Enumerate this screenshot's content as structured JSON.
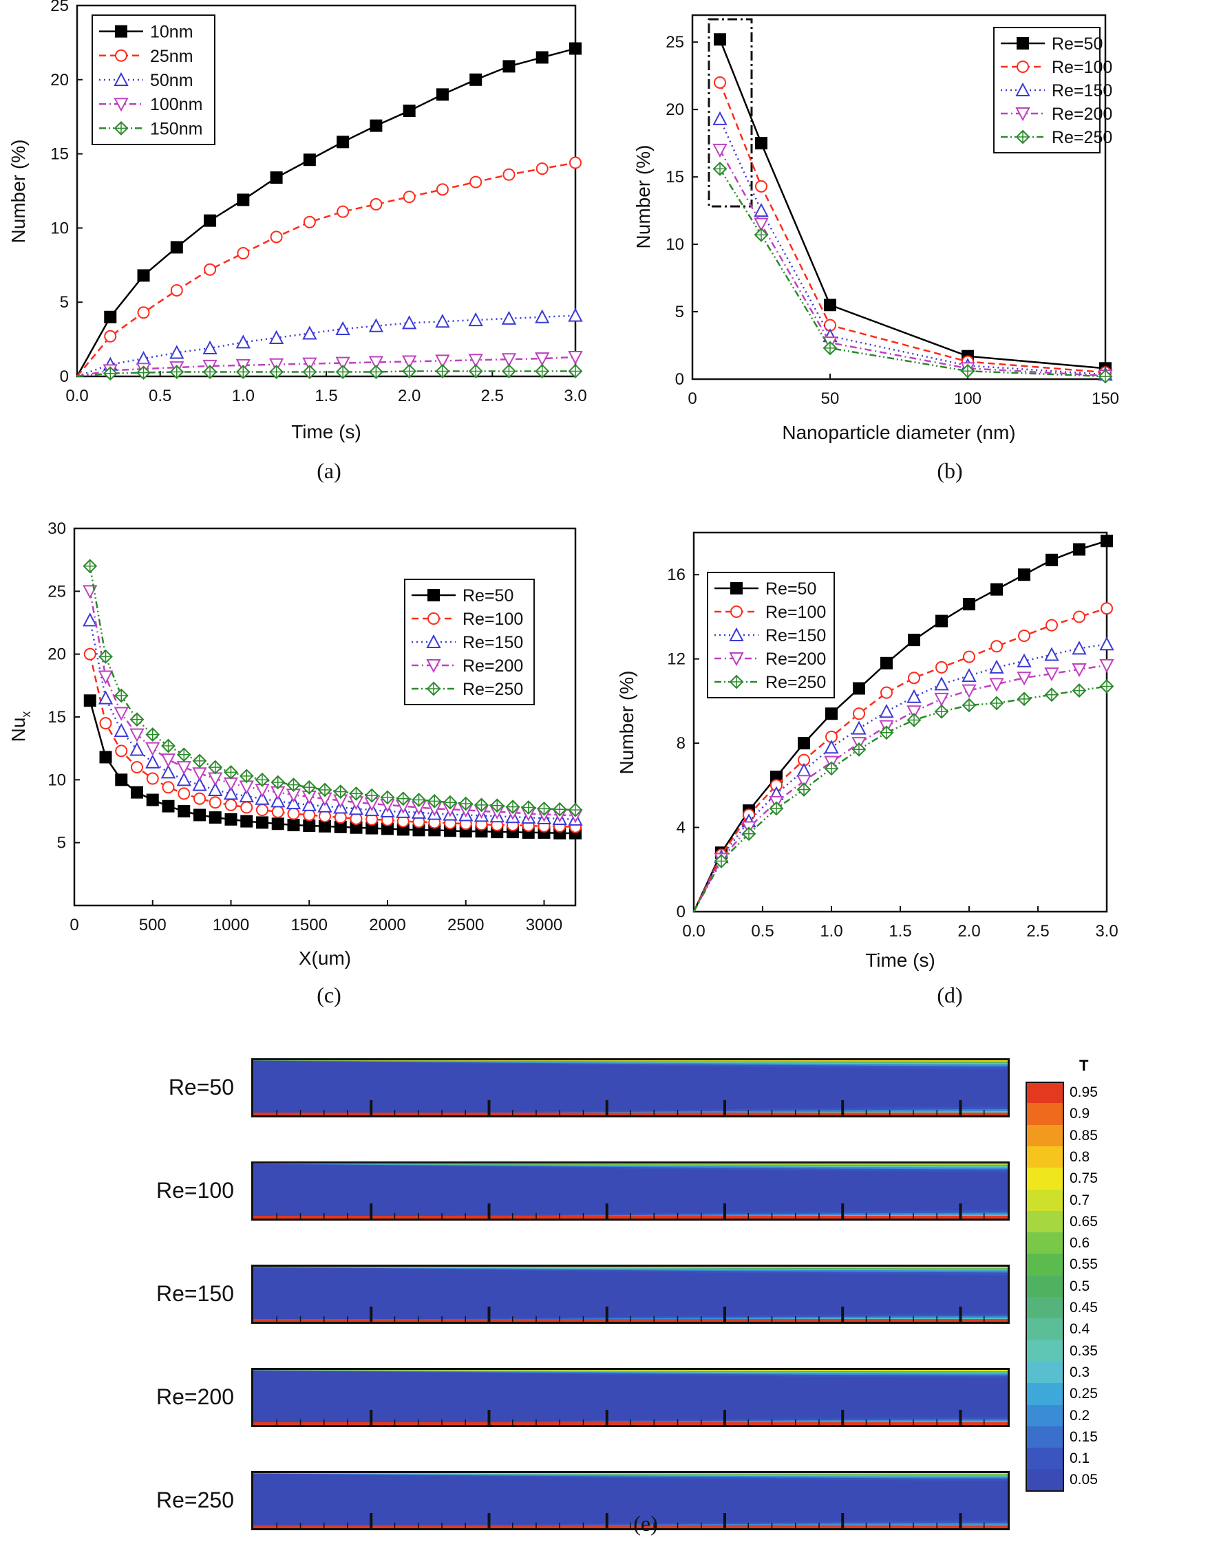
{
  "captions": {
    "a": "(a)",
    "b": "(b)",
    "c": "(c)",
    "d": "(d)",
    "e": "(e)"
  },
  "colors": {
    "s1": "#000000",
    "s2": "#ff2a1a",
    "s3": "#3a3ad6",
    "s4": "#c040c0",
    "s5": "#2a8a2a"
  },
  "chart_data": [
    {
      "id": "a",
      "type": "line",
      "title": "",
      "xlabel": "Time (s)",
      "ylabel": "Number (%)",
      "xlim": [
        0,
        3.0
      ],
      "ylim": [
        0,
        25
      ],
      "xticks": [
        "0.0",
        "0.5",
        "1.0",
        "1.5",
        "2.0",
        "2.5",
        "3.0"
      ],
      "xtickvals": [
        0,
        0.5,
        1.0,
        1.5,
        2.0,
        2.5,
        3.0
      ],
      "yticks": [
        "0",
        "5",
        "10",
        "15",
        "20",
        "25"
      ],
      "ytickvals": [
        0,
        5,
        10,
        15,
        20,
        25
      ],
      "x": [
        0,
        0.2,
        0.4,
        0.6,
        0.8,
        1.0,
        1.2,
        1.4,
        1.6,
        1.8,
        2.0,
        2.2,
        2.4,
        2.6,
        2.8,
        3.0
      ],
      "legend": "top-left",
      "series": [
        {
          "name": "10nm",
          "marker": "square",
          "dash": "solid",
          "values": [
            0,
            4.0,
            6.8,
            8.7,
            10.5,
            11.9,
            13.4,
            14.6,
            15.8,
            16.9,
            17.9,
            19.0,
            20.0,
            20.9,
            21.5,
            22.1
          ]
        },
        {
          "name": "25nm",
          "marker": "circle",
          "dash": "dash",
          "values": [
            0,
            2.7,
            4.3,
            5.8,
            7.2,
            8.3,
            9.4,
            10.4,
            11.1,
            11.6,
            12.1,
            12.6,
            13.1,
            13.6,
            14.0,
            14.4
          ]
        },
        {
          "name": "50nm",
          "marker": "triangle",
          "dash": "dot",
          "values": [
            0,
            0.8,
            1.2,
            1.6,
            1.9,
            2.3,
            2.6,
            2.9,
            3.2,
            3.4,
            3.6,
            3.7,
            3.8,
            3.9,
            4.0,
            4.1
          ]
        },
        {
          "name": "100nm",
          "marker": "triangle-down",
          "dash": "dashdot",
          "values": [
            0,
            0.4,
            0.5,
            0.6,
            0.7,
            0.75,
            0.8,
            0.85,
            0.9,
            0.95,
            1.0,
            1.05,
            1.1,
            1.15,
            1.2,
            1.3
          ]
        },
        {
          "name": "150nm",
          "marker": "diamond",
          "dash": "dashdotdot",
          "values": [
            0,
            0.2,
            0.25,
            0.3,
            0.3,
            0.3,
            0.3,
            0.3,
            0.3,
            0.3,
            0.35,
            0.35,
            0.35,
            0.35,
            0.35,
            0.35
          ]
        }
      ]
    },
    {
      "id": "b",
      "type": "line",
      "title": "",
      "xlabel": "Nanoparticle diameter (nm)",
      "ylabel": "Number (%)",
      "xlim": [
        0,
        150
      ],
      "ylim": [
        0,
        27
      ],
      "xticks": [
        "0",
        "50",
        "100",
        "150"
      ],
      "xtickvals": [
        0,
        50,
        100,
        150
      ],
      "yticks": [
        "0",
        "5",
        "10",
        "15",
        "20",
        "25"
      ],
      "ytickvals": [
        0,
        5,
        10,
        15,
        20,
        25
      ],
      "x": [
        10,
        25,
        50,
        100,
        150
      ],
      "legend": "top-right",
      "annotation": "dash-dot box around 10 nm points",
      "series": [
        {
          "name": "Re=50",
          "marker": "square",
          "dash": "solid",
          "values": [
            25.2,
            17.5,
            5.5,
            1.7,
            0.8
          ]
        },
        {
          "name": "Re=100",
          "marker": "circle",
          "dash": "dash",
          "values": [
            22.0,
            14.3,
            4.0,
            1.3,
            0.5
          ]
        },
        {
          "name": "Re=150",
          "marker": "triangle",
          "dash": "dot",
          "values": [
            19.3,
            12.5,
            3.2,
            1.0,
            0.35
          ]
        },
        {
          "name": "Re=200",
          "marker": "triangle-down",
          "dash": "dashdot",
          "values": [
            17.0,
            11.5,
            2.7,
            0.8,
            0.25
          ]
        },
        {
          "name": "Re=250",
          "marker": "diamond",
          "dash": "dashdotdot",
          "values": [
            15.6,
            10.7,
            2.3,
            0.6,
            0.2
          ]
        }
      ]
    },
    {
      "id": "c",
      "type": "line",
      "title": "",
      "xlabel": "X(um)",
      "ylabel": "Nu",
      "ylabel_sub": "x",
      "xlim": [
        0,
        3200
      ],
      "ylim": [
        0,
        30
      ],
      "xticks": [
        "0",
        "500",
        "1000",
        "1500",
        "2000",
        "2500",
        "3000"
      ],
      "xtickvals": [
        0,
        500,
        1000,
        1500,
        2000,
        2500,
        3000
      ],
      "yticks": [
        "5",
        "10",
        "15",
        "20",
        "25",
        "30"
      ],
      "ytickvals": [
        5,
        10,
        15,
        20,
        25,
        30
      ],
      "x": [
        100,
        200,
        300,
        400,
        500,
        600,
        700,
        800,
        900,
        1000,
        1100,
        1200,
        1300,
        1400,
        1500,
        1600,
        1700,
        1800,
        1900,
        2000,
        2100,
        2200,
        2300,
        2400,
        2500,
        2600,
        2700,
        2800,
        2900,
        3000,
        3100,
        3200
      ],
      "legend": "right",
      "series": [
        {
          "name": "Re=50",
          "marker": "square",
          "dash": "solid",
          "values": [
            16.3,
            11.8,
            10.0,
            9.0,
            8.4,
            7.9,
            7.5,
            7.2,
            7.0,
            6.85,
            6.7,
            6.6,
            6.5,
            6.4,
            6.35,
            6.3,
            6.25,
            6.2,
            6.15,
            6.1,
            6.05,
            6.0,
            6.0,
            5.95,
            5.9,
            5.9,
            5.85,
            5.85,
            5.8,
            5.8,
            5.75,
            5.75
          ]
        },
        {
          "name": "Re=100",
          "marker": "circle",
          "dash": "dash",
          "values": [
            20.0,
            14.5,
            12.3,
            11.0,
            10.1,
            9.4,
            8.9,
            8.5,
            8.2,
            8.0,
            7.8,
            7.6,
            7.45,
            7.3,
            7.2,
            7.1,
            7.0,
            6.9,
            6.85,
            6.8,
            6.7,
            6.65,
            6.6,
            6.55,
            6.5,
            6.45,
            6.4,
            6.4,
            6.35,
            6.3,
            6.3,
            6.25
          ]
        },
        {
          "name": "Re=150",
          "marker": "triangle",
          "dash": "dot",
          "values": [
            22.7,
            16.5,
            13.9,
            12.4,
            11.4,
            10.6,
            10.0,
            9.6,
            9.2,
            8.9,
            8.7,
            8.5,
            8.3,
            8.15,
            8.0,
            7.9,
            7.8,
            7.7,
            7.6,
            7.5,
            7.45,
            7.4,
            7.3,
            7.25,
            7.2,
            7.15,
            7.1,
            7.05,
            7.0,
            6.95,
            6.9,
            6.85
          ]
        },
        {
          "name": "Re=200",
          "marker": "triangle-down",
          "dash": "dashdot",
          "values": [
            25.0,
            18.2,
            15.3,
            13.6,
            12.5,
            11.6,
            11.0,
            10.5,
            10.1,
            9.7,
            9.45,
            9.2,
            9.0,
            8.8,
            8.65,
            8.5,
            8.35,
            8.2,
            8.1,
            8.0,
            7.9,
            7.8,
            7.7,
            7.65,
            7.6,
            7.5,
            7.45,
            7.4,
            7.3,
            7.25,
            7.2,
            7.15
          ]
        },
        {
          "name": "Re=250",
          "marker": "diamond",
          "dash": "dashdotdot",
          "values": [
            27.0,
            19.8,
            16.7,
            14.8,
            13.6,
            12.7,
            12.0,
            11.5,
            11.0,
            10.6,
            10.3,
            10.0,
            9.8,
            9.6,
            9.4,
            9.2,
            9.05,
            8.9,
            8.75,
            8.6,
            8.5,
            8.4,
            8.3,
            8.2,
            8.1,
            8.0,
            7.95,
            7.85,
            7.8,
            7.7,
            7.65,
            7.6
          ]
        }
      ]
    },
    {
      "id": "d",
      "type": "line",
      "title": "",
      "xlabel": "Time (s)",
      "ylabel": "Number (%)",
      "xlim": [
        0,
        3.0
      ],
      "ylim": [
        0,
        18
      ],
      "xticks": [
        "0.0",
        "0.5",
        "1.0",
        "1.5",
        "2.0",
        "2.5",
        "3.0"
      ],
      "xtickvals": [
        0,
        0.5,
        1.0,
        1.5,
        2.0,
        2.5,
        3.0
      ],
      "yticks": [
        "0",
        "4",
        "8",
        "12",
        "16"
      ],
      "ytickvals": [
        0,
        4,
        8,
        12,
        16
      ],
      "x": [
        0,
        0.2,
        0.4,
        0.6,
        0.8,
        1.0,
        1.2,
        1.4,
        1.6,
        1.8,
        2.0,
        2.2,
        2.4,
        2.6,
        2.8,
        3.0
      ],
      "legend": "top-left",
      "series": [
        {
          "name": "Re=50",
          "marker": "square",
          "dash": "solid",
          "values": [
            0,
            2.8,
            4.8,
            6.4,
            8.0,
            9.4,
            10.6,
            11.8,
            12.9,
            13.8,
            14.6,
            15.3,
            16.0,
            16.7,
            17.2,
            17.6
          ]
        },
        {
          "name": "Re=100",
          "marker": "circle",
          "dash": "dash",
          "values": [
            0,
            2.7,
            4.6,
            6.0,
            7.2,
            8.3,
            9.4,
            10.4,
            11.1,
            11.6,
            12.1,
            12.6,
            13.1,
            13.6,
            14.0,
            14.4
          ]
        },
        {
          "name": "Re=150",
          "marker": "triangle",
          "dash": "dot",
          "values": [
            0,
            2.6,
            4.3,
            5.6,
            6.7,
            7.8,
            8.7,
            9.5,
            10.2,
            10.8,
            11.2,
            11.6,
            11.9,
            12.2,
            12.5,
            12.7
          ]
        },
        {
          "name": "Re=200",
          "marker": "triangle-down",
          "dash": "dashdot",
          "values": [
            0,
            2.5,
            4.0,
            5.2,
            6.2,
            7.1,
            8.0,
            8.8,
            9.5,
            10.1,
            10.5,
            10.8,
            11.1,
            11.3,
            11.5,
            11.7
          ]
        },
        {
          "name": "Re=250",
          "marker": "diamond",
          "dash": "dashdotdot",
          "values": [
            0,
            2.4,
            3.7,
            4.9,
            5.8,
            6.8,
            7.7,
            8.5,
            9.1,
            9.5,
            9.8,
            9.9,
            10.1,
            10.3,
            10.5,
            10.7
          ]
        }
      ]
    },
    {
      "id": "e",
      "type": "heatmap",
      "title": "",
      "colorbar_title": "T",
      "rows": [
        "Re=50",
        "Re=100",
        "Re=150",
        "Re=200",
        "Re=250"
      ],
      "inlet_growth_fraction": [
        0.5,
        0.45,
        0.4,
        0.37,
        0.33
      ],
      "levels": [
        "0.95",
        "0.9",
        "0.85",
        "0.8",
        "0.75",
        "0.7",
        "0.65",
        "0.6",
        "0.55",
        "0.5",
        "0.45",
        "0.4",
        "0.35",
        "0.3",
        "0.25",
        "0.2",
        "0.15",
        "0.1",
        "0.05"
      ],
      "level_colors": [
        "#e33a1e",
        "#ee6a1c",
        "#f29a1e",
        "#f5c51e",
        "#f0e61e",
        "#cfe02a",
        "#a6d640",
        "#7ac848",
        "#5cbb4e",
        "#4fb261",
        "#55b47c",
        "#5cbe99",
        "#5fc6b6",
        "#58bfd0",
        "#3fa8da",
        "#3a8cd6",
        "#3a6fcc",
        "#3a55bf",
        "#3b4bb5"
      ]
    }
  ]
}
